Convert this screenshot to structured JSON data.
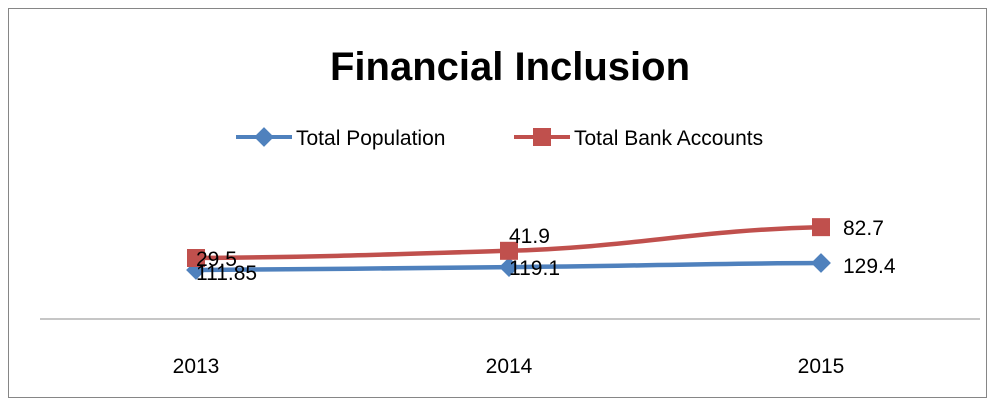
{
  "chart_data": {
    "type": "line",
    "title": "Financial Inclusion",
    "categories": [
      "2013",
      "2014",
      "2015"
    ],
    "series": [
      {
        "name": "Total Population",
        "color": "#4F81BD",
        "marker": "diamond",
        "values": [
          111.85,
          119.1,
          129.4
        ],
        "labels": [
          "111.85",
          "119.1",
          "129.4"
        ]
      },
      {
        "name": "Total Bank Accounts",
        "color": "#C0504D",
        "marker": "square",
        "values": [
          29.5,
          41.9,
          82.7
        ],
        "labels": [
          "29.5",
          "41.9",
          "82.7"
        ]
      }
    ],
    "legend_position": "top",
    "grid": false,
    "axis_color": "#8C8C8C",
    "frame_color": "#868686"
  }
}
